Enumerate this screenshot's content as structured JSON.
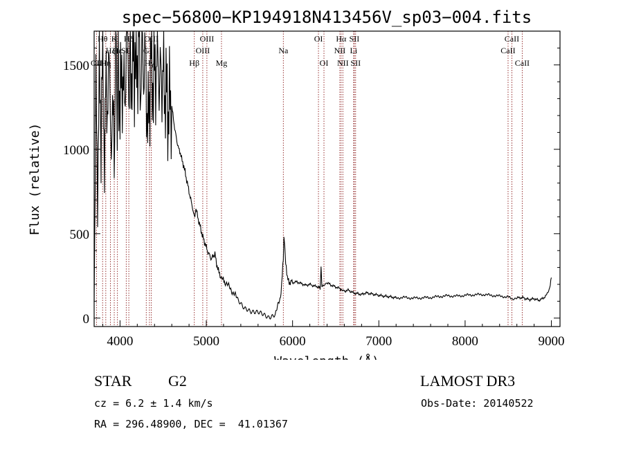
{
  "chart_data": {
    "type": "line",
    "title": "spec−56800−KP194918N413456V_sp03−004.fits",
    "xlabel": "Wavelength (Å)",
    "ylabel": "Flux (relative)",
    "xlim": [
      3700,
      9100
    ],
    "ylim": [
      -50,
      1700
    ],
    "x_ticks": [
      4000,
      5000,
      6000,
      7000,
      8000,
      9000
    ],
    "y_ticks": [
      0,
      500,
      1000,
      1500
    ],
    "series": [
      {
        "name": "flux",
        "x": [
          3700,
          3720,
          3740,
          3760,
          3780,
          3800,
          3820,
          3840,
          3860,
          3880,
          3900,
          3920,
          3933,
          3950,
          3968,
          3980,
          4000,
          4020,
          4040,
          4060,
          4080,
          4101,
          4120,
          4140,
          4160,
          4180,
          4200,
          4220,
          4240,
          4260,
          4280,
          4300,
          4320,
          4340,
          4360,
          4380,
          4400,
          4420,
          4440,
          4460,
          4480,
          4500,
          4520,
          4540,
          4560,
          4580,
          4600,
          4620,
          4640,
          4660,
          4680,
          4700,
          4720,
          4740,
          4760,
          4780,
          4800,
          4820,
          4840,
          4861,
          4880,
          4900,
          4920,
          4940,
          4960,
          4980,
          5000,
          5020,
          5040,
          5060,
          5080,
          5100,
          5120,
          5140,
          5160,
          5172,
          5190,
          5210,
          5240,
          5270,
          5300,
          5330,
          5360,
          5400,
          5440,
          5480,
          5520,
          5560,
          5600,
          5640,
          5680,
          5720,
          5760,
          5800,
          5830,
          5860,
          5880,
          5893,
          5900,
          5910,
          5920,
          5940,
          5960,
          5980,
          6000,
          6050,
          6100,
          6150,
          6200,
          6250,
          6300,
          6320,
          6330,
          6340,
          6360,
          6400,
          6450,
          6500,
          6550,
          6563,
          6580,
          6600,
          6650,
          6700,
          6750,
          6800,
          6850,
          6900,
          6950,
          7000,
          7050,
          7100,
          7150,
          7200,
          7300,
          7400,
          7500,
          7600,
          7700,
          7800,
          7900,
          8000,
          8100,
          8200,
          8300,
          8400,
          8500,
          8542,
          8600,
          8662,
          8700,
          8750,
          8800,
          8850,
          8900,
          8950,
          8980,
          9000
        ],
        "values": [
          100,
          1350,
          700,
          1500,
          1100,
          1600,
          900,
          1450,
          1200,
          1650,
          800,
          1550,
          900,
          1500,
          1000,
          1600,
          1200,
          1500,
          1300,
          1400,
          1650,
          1100,
          1550,
          1450,
          1600,
          1500,
          1550,
          1600,
          1400,
          1550,
          1500,
          1480,
          1100,
          1300,
          1550,
          1400,
          1450,
          1500,
          1550,
          1380,
          1450,
          1420,
          1350,
          1330,
          1200,
          1300,
          1250,
          1180,
          1100,
          1050,
          1000,
          980,
          930,
          900,
          850,
          800,
          750,
          700,
          660,
          600,
          650,
          600,
          560,
          520,
          480,
          450,
          420,
          390,
          370,
          350,
          370,
          380,
          320,
          280,
          260,
          240,
          230,
          220,
          200,
          180,
          160,
          140,
          110,
          90,
          70,
          60,
          40,
          30,
          25,
          20,
          15,
          10,
          20,
          30,
          70,
          120,
          250,
          350,
          480,
          420,
          320,
          250,
          200,
          220,
          210,
          215,
          205,
          195,
          200,
          190,
          185,
          175,
          300,
          180,
          200,
          210,
          195,
          185,
          175,
          170,
          165,
          160,
          165,
          150,
          145,
          140,
          150,
          145,
          140,
          135,
          130,
          128,
          125,
          120,
          122,
          118,
          120,
          122,
          128,
          132,
          130,
          135,
          138,
          140,
          135,
          130,
          125,
          115,
          120,
          122,
          115,
          110,
          115,
          105,
          115,
          140,
          180,
          240
        ]
      }
    ],
    "emission_lines": [
      {
        "label": "OII",
        "wave": 3727,
        "row": 2
      },
      {
        "label": "Hθ",
        "wave": 3798,
        "row": 0
      },
      {
        "label": "Hη",
        "wave": 3835,
        "row": 2
      },
      {
        "label": "Hζ",
        "wave": 3889,
        "row": 1
      },
      {
        "label": "K",
        "wave": 3933,
        "row": 0
      },
      {
        "label": "Hε",
        "wave": 3970,
        "row": 1
      },
      {
        "label": "SII",
        "wave": 4072,
        "row": 1
      },
      {
        "label": "Hδ",
        "wave": 4102,
        "row": 0
      },
      {
        "label": "G",
        "wave": 4304,
        "row": 1
      },
      {
        "label": "Hγ",
        "wave": 4341,
        "row": 2
      },
      {
        "label": "OIII",
        "wave": 4363,
        "row": 0
      },
      {
        "label": "Hβ",
        "wave": 4861,
        "row": 2
      },
      {
        "label": "OIII",
        "wave": 4959,
        "row": 1
      },
      {
        "label": "OIII",
        "wave": 5007,
        "row": 0
      },
      {
        "label": "Mg",
        "wave": 5176,
        "row": 2
      },
      {
        "label": "Na",
        "wave": 5893,
        "row": 1
      },
      {
        "label": "OI",
        "wave": 6300,
        "row": 0
      },
      {
        "label": "OI",
        "wave": 6364,
        "row": 2
      },
      {
        "label": "NII",
        "wave": 6548,
        "row": 1
      },
      {
        "label": "Hα",
        "wave": 6563,
        "row": 0
      },
      {
        "label": "NII",
        "wave": 6583,
        "row": 2
      },
      {
        "label": "Li",
        "wave": 6708,
        "row": 1
      },
      {
        "label": "SII",
        "wave": 6716,
        "row": 0
      },
      {
        "label": "SII",
        "wave": 6731,
        "row": 2
      },
      {
        "label": "CaII",
        "wave": 8498,
        "row": 1
      },
      {
        "label": "CaII",
        "wave": 8542,
        "row": 0
      },
      {
        "label": "CaII",
        "wave": 8662,
        "row": 2
      }
    ]
  },
  "info": {
    "class_label": "STAR",
    "subclass": "G2",
    "survey": "LAMOST DR3",
    "cz_text": "cz = 6.2 ± 1.4 km/s",
    "obs_date_text": "Obs-Date: 20140522",
    "radec_text": "RA = 296.48900, DEC =  41.01367"
  },
  "colors": {
    "line_marker": "#8b1a1a",
    "spectrum": "#000000"
  }
}
